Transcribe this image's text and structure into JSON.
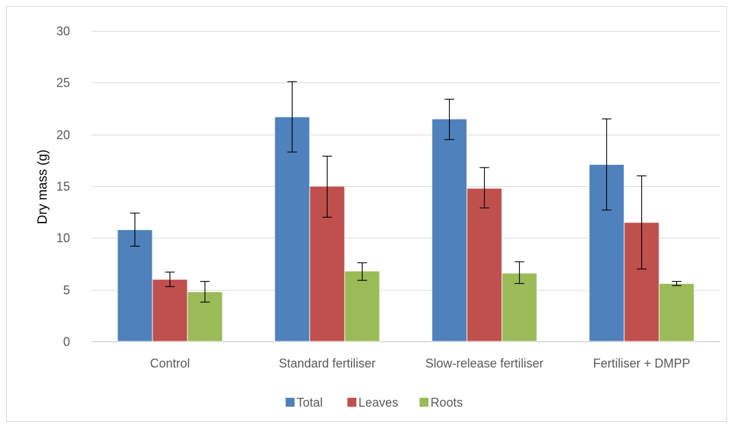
{
  "chart_data": {
    "type": "bar",
    "title": "",
    "xlabel": "",
    "ylabel": "Dry  mass (g)",
    "ylim": [
      0,
      30
    ],
    "yticks": [
      0,
      5,
      10,
      15,
      20,
      25,
      30
    ],
    "grid": true,
    "legend_position": "bottom",
    "categories": [
      "Control",
      "Standard fertiliser",
      "Slow-release fertiliser",
      "Fertiliser + DMPP"
    ],
    "series": [
      {
        "name": "Total",
        "color": "#4f81bd",
        "values": [
          10.8,
          21.7,
          21.5,
          17.1
        ],
        "error_low": [
          9.2,
          18.3,
          19.5,
          12.7
        ],
        "error_high": [
          12.4,
          25.1,
          23.4,
          21.5
        ]
      },
      {
        "name": "Leaves",
        "color": "#c0504d",
        "values": [
          6.0,
          15.0,
          14.8,
          11.5
        ],
        "error_low": [
          5.3,
          12.0,
          12.9,
          7.0
        ],
        "error_high": [
          6.7,
          17.9,
          16.8,
          16.0
        ]
      },
      {
        "name": "Roots",
        "color": "#9bbb59",
        "values": [
          4.8,
          6.8,
          6.6,
          5.6
        ],
        "error_low": [
          3.8,
          5.9,
          5.6,
          5.4
        ],
        "error_high": [
          5.8,
          7.6,
          7.7,
          5.8
        ]
      }
    ]
  }
}
